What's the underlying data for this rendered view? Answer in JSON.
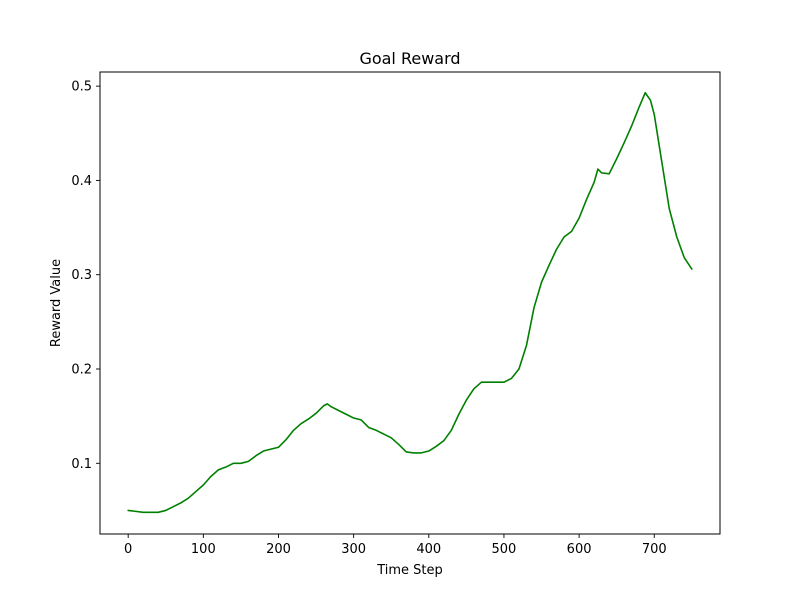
{
  "chart_data": {
    "type": "line",
    "title": "Goal Reward",
    "xlabel": "Time Step",
    "ylabel": "Reward Value",
    "xlim": [
      -37.5,
      787.5
    ],
    "ylim": [
      0.025,
      0.515
    ],
    "xticks": [
      0,
      100,
      200,
      300,
      400,
      500,
      600,
      700
    ],
    "xtick_labels": [
      "0",
      "100",
      "200",
      "300",
      "400",
      "500",
      "600",
      "700"
    ],
    "yticks": [
      0.1,
      0.2,
      0.3,
      0.4,
      0.5
    ],
    "ytick_labels": [
      "0.1",
      "0.2",
      "0.3",
      "0.4",
      "0.5"
    ],
    "grid": false,
    "series": [
      {
        "name": "Goal Reward",
        "color": "#008000",
        "x": [
          0,
          10,
          20,
          30,
          40,
          50,
          60,
          70,
          80,
          90,
          100,
          110,
          120,
          130,
          140,
          150,
          160,
          170,
          180,
          190,
          200,
          210,
          220,
          230,
          240,
          250,
          260,
          265,
          270,
          280,
          290,
          300,
          310,
          320,
          330,
          340,
          350,
          360,
          370,
          380,
          390,
          400,
          410,
          420,
          430,
          440,
          450,
          460,
          470,
          480,
          490,
          500,
          510,
          520,
          530,
          540,
          550,
          560,
          570,
          580,
          590,
          600,
          610,
          620,
          625,
          630,
          640,
          650,
          660,
          670,
          680,
          688,
          695,
          700,
          710,
          720,
          730,
          740,
          750
        ],
        "values": [
          0.05,
          0.049,
          0.048,
          0.048,
          0.048,
          0.05,
          0.054,
          0.058,
          0.063,
          0.07,
          0.077,
          0.086,
          0.093,
          0.096,
          0.1,
          0.1,
          0.102,
          0.108,
          0.113,
          0.115,
          0.117,
          0.125,
          0.135,
          0.142,
          0.147,
          0.153,
          0.161,
          0.163,
          0.16,
          0.156,
          0.152,
          0.148,
          0.146,
          0.138,
          0.135,
          0.131,
          0.127,
          0.12,
          0.112,
          0.111,
          0.111,
          0.113,
          0.118,
          0.124,
          0.135,
          0.152,
          0.167,
          0.179,
          0.186,
          0.186,
          0.186,
          0.186,
          0.19,
          0.2,
          0.225,
          0.265,
          0.292,
          0.31,
          0.327,
          0.34,
          0.346,
          0.36,
          0.38,
          0.398,
          0.412,
          0.408,
          0.407,
          0.423,
          0.44,
          0.458,
          0.478,
          0.493,
          0.485,
          0.47,
          0.42,
          0.37,
          0.34,
          0.318,
          0.306
        ]
      }
    ]
  }
}
